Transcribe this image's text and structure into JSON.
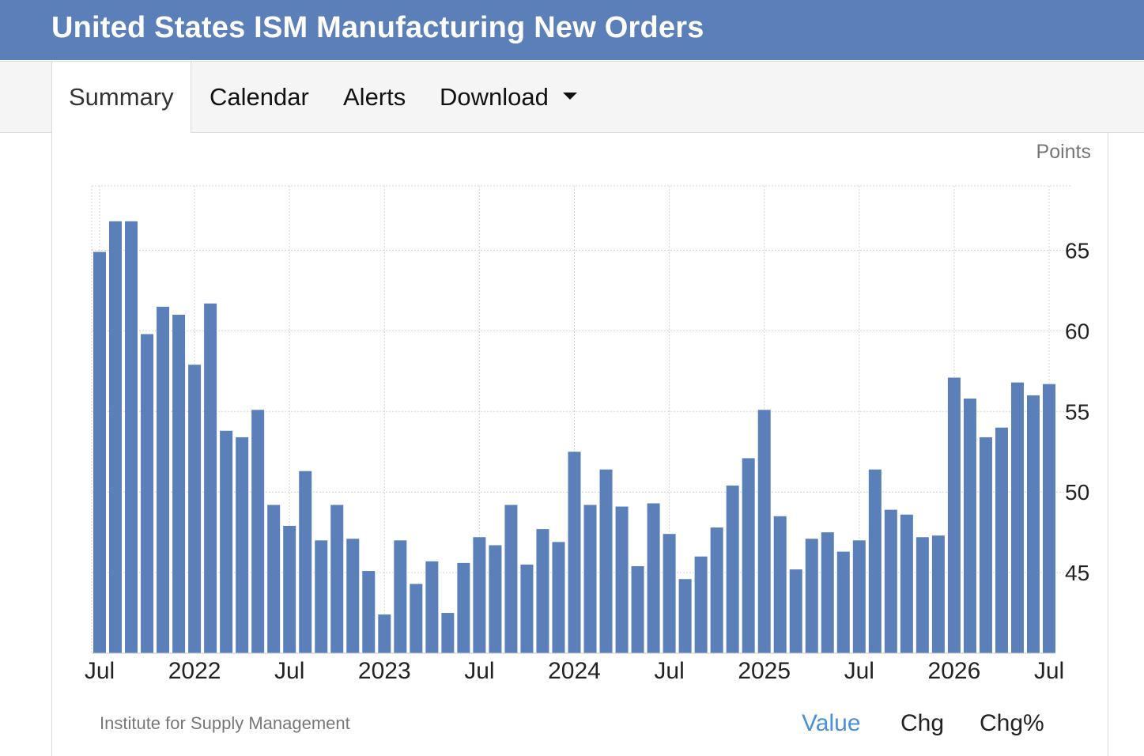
{
  "title": "United States ISM Manufacturing New Orders",
  "tabs": [
    "Summary",
    "Calendar",
    "Alerts",
    "Download"
  ],
  "unit": "Points",
  "source": "Institute for Supply Management",
  "options": [
    "Value",
    "Chg",
    "Chg%"
  ],
  "colors": {
    "header": "#5b7fb9",
    "bar": "#5b7fb9",
    "active_option": "#4a90d9"
  },
  "icons": {
    "download_caret": "caret-down-icon"
  },
  "chart_data": {
    "type": "bar",
    "title": "",
    "xlabel": "",
    "ylabel": "",
    "ylim": [
      40,
      69
    ],
    "yticks": [
      45,
      50,
      55,
      60,
      65
    ],
    "xticks": [
      {
        "label": "Jul",
        "index": 0
      },
      {
        "label": "2022",
        "index": 6
      },
      {
        "label": "Jul",
        "index": 12
      },
      {
        "label": "2023",
        "index": 18
      },
      {
        "label": "Jul",
        "index": 24
      },
      {
        "label": "2024",
        "index": 30
      },
      {
        "label": "Jul",
        "index": 36
      },
      {
        "label": "2025",
        "index": 42
      },
      {
        "label": "Jul",
        "index": 48
      },
      {
        "label": "2026",
        "index": 54
      },
      {
        "label": "Jul",
        "index": 60
      }
    ],
    "grid": true,
    "series": [
      {
        "values": [
          64.9,
          66.8,
          66.8,
          59.8,
          61.5,
          61.0,
          57.9,
          61.7,
          53.8,
          53.4,
          55.1,
          49.2,
          47.9,
          51.3,
          47.0,
          49.2,
          47.1,
          45.1,
          42.4,
          47.0,
          44.3,
          45.7,
          42.5,
          45.6,
          47.2,
          46.7,
          49.2,
          45.5,
          47.7,
          46.9,
          52.5,
          49.2,
          51.4,
          49.1,
          45.4,
          49.3,
          47.4,
          44.6,
          46.0,
          47.8,
          50.4,
          52.1,
          55.1,
          48.5,
          45.2,
          47.1,
          47.5,
          46.3,
          47.0,
          51.4,
          48.9,
          48.6,
          47.2,
          47.3,
          57.1,
          55.8,
          53.4,
          54.0,
          56.8,
          56.0,
          56.7
        ]
      }
    ]
  }
}
